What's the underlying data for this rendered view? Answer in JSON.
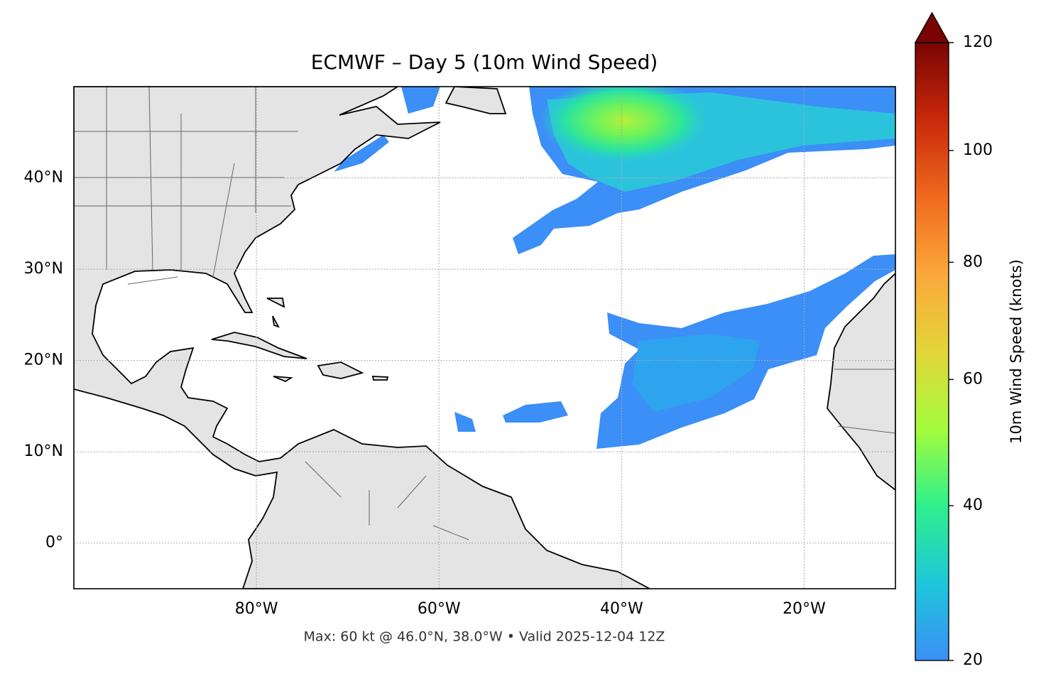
{
  "chart_data": {
    "type": "map",
    "title": "ECMWF – Day 5 (10m Wind Speed)",
    "footnote": "Max: 60 kt @ 46.0°N, 38.0°W • Valid 2025-12-04 12Z",
    "xlim": [
      -100,
      -10
    ],
    "ylim": [
      -5,
      50
    ],
    "xticks": [
      {
        "value": -80,
        "label": "80°W"
      },
      {
        "value": -60,
        "label": "60°W"
      },
      {
        "value": -40,
        "label": "40°W"
      },
      {
        "value": -20,
        "label": "20°W"
      }
    ],
    "yticks": [
      {
        "value": 0,
        "label": "0°"
      },
      {
        "value": 10,
        "label": "10°N"
      },
      {
        "value": 20,
        "label": "20°N"
      },
      {
        "value": 30,
        "label": "30°N"
      },
      {
        "value": 40,
        "label": "40°N"
      }
    ],
    "grid": true,
    "colorbar": {
      "label": "10m Wind Speed (knots)",
      "lim": [
        20,
        120
      ],
      "ticks": [
        20,
        40,
        60,
        80,
        100,
        120
      ],
      "gamma": 0.86,
      "extend": "max",
      "colors": [
        "#3b8ff6",
        "#1fc6da",
        "#2ef08c",
        "#a4fc3c",
        "#e2d53a",
        "#fba83b",
        "#ef6a1e",
        "#c9290a",
        "#7a0403"
      ]
    }
  }
}
